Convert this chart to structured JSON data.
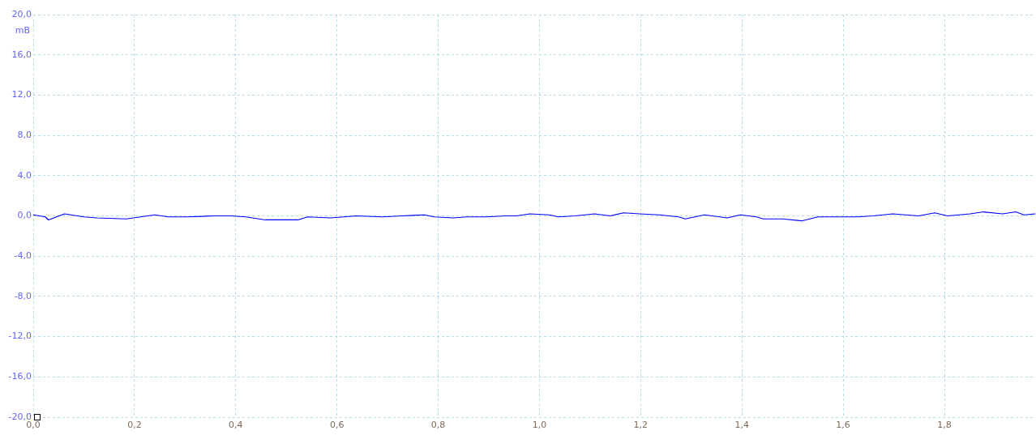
{
  "chart_data": {
    "type": "line",
    "ylabel": "mB",
    "xlim": [
      0,
      1.98
    ],
    "ylim": [
      -20,
      20
    ],
    "xticks": [
      {
        "value": 0,
        "label": "0,0"
      },
      {
        "value": 0.2,
        "label": "0,2"
      },
      {
        "value": 0.4,
        "label": "0,4"
      },
      {
        "value": 0.6,
        "label": "0,6"
      },
      {
        "value": 0.8,
        "label": "0,8"
      },
      {
        "value": 1.0,
        "label": "1,0"
      },
      {
        "value": 1.2,
        "label": "1,2"
      },
      {
        "value": 1.4,
        "label": "1,4"
      },
      {
        "value": 1.6,
        "label": "1,6"
      },
      {
        "value": 1.8,
        "label": "1,8"
      }
    ],
    "yticks": [
      {
        "value": -20,
        "label": "-20,0"
      },
      {
        "value": -16,
        "label": "-16,0"
      },
      {
        "value": -12,
        "label": "-12,0"
      },
      {
        "value": -8,
        "label": "-8,0"
      },
      {
        "value": -4,
        "label": "-4,0"
      },
      {
        "value": 0,
        "label": "0,0"
      },
      {
        "value": 4,
        "label": "4,0"
      },
      {
        "value": 8,
        "label": "8,0"
      },
      {
        "value": 12,
        "label": "12,0"
      },
      {
        "value": 16,
        "label": "16,0"
      },
      {
        "value": 20,
        "label": "20,0"
      }
    ],
    "x": [
      0,
      0.024,
      0.03,
      0.062,
      0.1,
      0.126,
      0.184,
      0.24,
      0.267,
      0.305,
      0.357,
      0.389,
      0.42,
      0.459,
      0.523,
      0.542,
      0.587,
      0.613,
      0.638,
      0.69,
      0.728,
      0.773,
      0.792,
      0.83,
      0.856,
      0.894,
      0.933,
      0.955,
      0.981,
      1.019,
      1.038,
      1.07,
      1.109,
      1.14,
      1.166,
      1.198,
      1.237,
      1.275,
      1.288,
      1.326,
      1.371,
      1.397,
      1.429,
      1.442,
      1.48,
      1.518,
      1.55,
      1.595,
      1.627,
      1.659,
      1.698,
      1.749,
      1.781,
      1.806,
      1.851,
      1.877,
      1.915,
      1.941,
      1.957,
      1.98
    ],
    "series": [
      {
        "color": "#0000ff",
        "values": [
          0.1,
          -0.1,
          -0.4,
          0.2,
          -0.1,
          -0.2,
          -0.3,
          0.1,
          -0.1,
          -0.1,
          0,
          0,
          -0.1,
          -0.4,
          -0.4,
          -0.1,
          -0.2,
          -0.1,
          0,
          -0.1,
          0,
          0.1,
          -0.1,
          -0.2,
          -0.1,
          -0.1,
          0,
          0,
          0.2,
          0.1,
          -0.1,
          0,
          0.2,
          0,
          0.3,
          0.2,
          0.1,
          -0.1,
          -0.3,
          0.1,
          -0.2,
          0.1,
          -0.1,
          -0.3,
          -0.3,
          -0.5,
          -0.1,
          -0.1,
          -0.1,
          0,
          0.2,
          0,
          0.3,
          0,
          0.2,
          0.4,
          0.2,
          0.4,
          0.1,
          0.2
        ]
      }
    ],
    "grid": true,
    "legend": false,
    "marker": "none",
    "line_style": "solid"
  }
}
